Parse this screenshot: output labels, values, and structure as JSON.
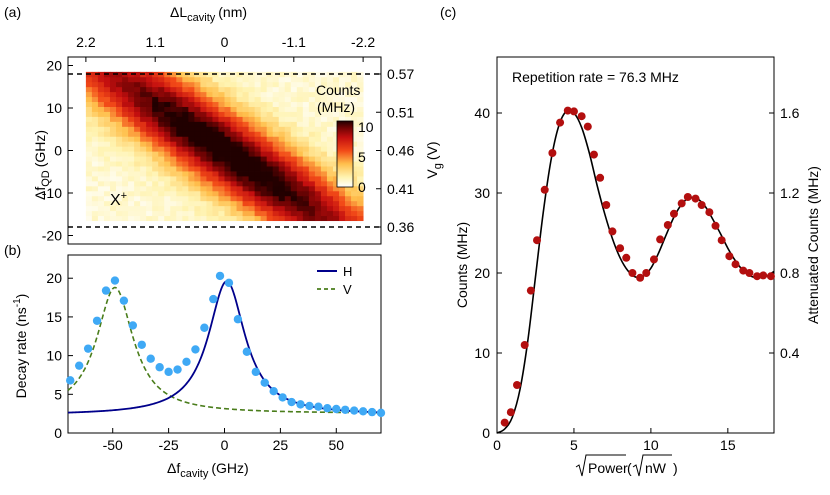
{
  "colors": {
    "blue_line": "#00008b",
    "blue_point": "#3fa9f5",
    "green_dash": "#4a7d1b",
    "red_point": "#b30f0f",
    "black": "#000000"
  },
  "chart_data": [
    {
      "id": "a",
      "panel_label": "(a)",
      "type": "heatmap",
      "top_axis_label": "ΔL",
      "top_axis_label_sub": "cavity",
      "top_axis_unit": "(nm)",
      "top_ticks": [
        {
          "label": "2.2",
          "x_ghz": -62
        },
        {
          "label": "1.1",
          "x_ghz": -31
        },
        {
          "label": "0",
          "x_ghz": 0
        },
        {
          "label": "-1.1",
          "x_ghz": 31
        },
        {
          "label": "-2.2",
          "x_ghz": 62
        }
      ],
      "ylabel": "Δf",
      "ylabel_sub": "QD",
      "ylabel_unit": "(GHz)",
      "yticks": [
        20,
        10,
        0,
        -10,
        -20
      ],
      "ylim": [
        -22,
        22
      ],
      "xlim": [
        -70,
        70
      ],
      "right_label": "V",
      "right_label_sub": "g",
      "right_label_unit": "(V)",
      "right_ticks": [
        {
          "label": "0.57",
          "y_ghz": 18
        },
        {
          "label": "0.51",
          "y_ghz": 9
        },
        {
          "label": "0.46",
          "y_ghz": 0
        },
        {
          "label": "0.41",
          "y_ghz": -9
        },
        {
          "label": "0.36",
          "y_ghz": -18
        }
      ],
      "dashed_lines_ghz": [
        18,
        -18
      ],
      "annotation": "X",
      "annotation_sup": "+",
      "colorbar_title_1": "Counts",
      "colorbar_title_2": "(MHz)",
      "colorbar_ticks": [
        "10",
        "5",
        "0"
      ],
      "colorbar_range": [
        0,
        11
      ],
      "map_x_range_ghz": [
        -62,
        62
      ],
      "map_y_range_ghz": [
        -16.5,
        18.5
      ],
      "diagonal_ridge": {
        "slope_ghz_per_ghz": -0.34,
        "peak_mhz": 11
      }
    },
    {
      "id": "b",
      "panel_label": "(b)",
      "type": "line",
      "xlabel": "Δf",
      "xlabel_sub": "cavity",
      "xlabel_unit": "(GHz)",
      "ylabel": "Decay rate (ns",
      "ylabel_sup": "-1",
      "ylabel_end": ")",
      "xticks": [
        -50,
        -25,
        0,
        25,
        50
      ],
      "yticks": [
        0,
        5,
        10,
        15,
        20
      ],
      "xlim": [
        -70,
        70
      ],
      "ylim": [
        0,
        23
      ],
      "legend": [
        {
          "name": "H",
          "style": "solid"
        },
        {
          "name": "V",
          "style": "dashed"
        }
      ],
      "series": [
        {
          "name": "H",
          "type": "line",
          "model": "lorentzian",
          "center": 1,
          "hwhm": 10,
          "amp": 17.3,
          "offset": 2.3
        },
        {
          "name": "V",
          "type": "line",
          "model": "lorentzian",
          "center": -49,
          "hwhm": 10,
          "amp": 16.3,
          "offset": 2.5
        },
        {
          "name": "data",
          "type": "scatter",
          "x": [
            -69,
            -65,
            -61,
            -57,
            -53,
            -49,
            -45,
            -41,
            -37,
            -33,
            -29,
            -25,
            -21,
            -17,
            -13,
            -9,
            -5,
            -2,
            2,
            6,
            10,
            14,
            18,
            22,
            26,
            30,
            34,
            38,
            42,
            46,
            50,
            54,
            58,
            62,
            66,
            70
          ],
          "y": [
            6.8,
            8.7,
            10.9,
            14.5,
            18.4,
            19.7,
            17.1,
            13.9,
            11.4,
            9.6,
            8.5,
            7.9,
            8.2,
            9.2,
            10.8,
            13.6,
            17.3,
            20.3,
            19.4,
            14.7,
            10.5,
            7.9,
            6.5,
            5.4,
            4.6,
            4.0,
            3.7,
            3.5,
            3.4,
            3.2,
            3.1,
            3.0,
            2.9,
            2.8,
            2.7,
            2.6
          ]
        }
      ]
    },
    {
      "id": "c",
      "panel_label": "(c)",
      "type": "scatter",
      "annotation": "Repetition rate = 76.3 MHz",
      "xlabel": "Power",
      "xlabel_mid": "(",
      "xlabel_inner": "nW",
      "xlabel_end": ")",
      "ylabel": "Counts (MHz)",
      "right_label": "Attenuated Counts (MHz)",
      "xticks": [
        0,
        5,
        10,
        15
      ],
      "yticks": [
        0,
        10,
        20,
        30,
        40
      ],
      "right_ticks": [
        "0.4",
        "0.8",
        "1.2",
        "1.6"
      ],
      "right_ticks_values": [
        0.4,
        0.8,
        1.2,
        1.6
      ],
      "right_scale_max": 1.88,
      "xlim": [
        0,
        18
      ],
      "ylim": [
        0,
        47
      ],
      "series": [
        {
          "name": "fit",
          "type": "line",
          "x": [
            0,
            0.5,
            1,
            1.5,
            2,
            2.5,
            3,
            3.5,
            4,
            4.5,
            5,
            5.5,
            6,
            6.5,
            7,
            7.5,
            8,
            8.5,
            9,
            9.5,
            10,
            10.5,
            11,
            11.5,
            12,
            12.5,
            13,
            13.5,
            14,
            14.5,
            15,
            15.5,
            16,
            16.5,
            17,
            17.5,
            18
          ],
          "y": [
            0,
            0.5,
            2.0,
            5.5,
            11.5,
            19.5,
            27.5,
            34.0,
            38.3,
            40.2,
            40.0,
            38.2,
            35.0,
            31.0,
            27.4,
            24.3,
            21.9,
            20.3,
            19.5,
            19.6,
            20.6,
            22.5,
            24.8,
            27.0,
            28.6,
            29.4,
            29.3,
            28.4,
            26.8,
            25.0,
            23.1,
            21.5,
            20.3,
            19.6,
            19.4,
            19.6,
            20.2
          ]
        },
        {
          "name": "data",
          "type": "scatter",
          "x": [
            0.5,
            0.9,
            1.3,
            1.8,
            2.2,
            2.6,
            3.1,
            3.6,
            4.1,
            4.6,
            5.0,
            5.5,
            5.9,
            6.3,
            6.7,
            7.1,
            7.5,
            8.0,
            8.4,
            8.8,
            9.3,
            9.7,
            10.2,
            10.6,
            11.1,
            11.5,
            12.0,
            12.4,
            12.9,
            13.3,
            13.8,
            14.2,
            14.6,
            15.1,
            15.5,
            16.0,
            16.4,
            16.9,
            17.3,
            17.8
          ],
          "y": [
            1.3,
            2.6,
            6.0,
            11.0,
            17.8,
            24.1,
            30.4,
            35.0,
            38.8,
            40.3,
            40.2,
            39.6,
            38.3,
            34.8,
            31.9,
            28.5,
            25.2,
            23.1,
            21.9,
            20.0,
            19.4,
            20.0,
            21.7,
            24.2,
            26.0,
            27.4,
            28.7,
            29.5,
            29.3,
            28.5,
            27.6,
            25.9,
            24.1,
            22.1,
            21.1,
            20.3,
            20.0,
            19.6,
            19.7,
            19.6
          ]
        }
      ]
    }
  ]
}
